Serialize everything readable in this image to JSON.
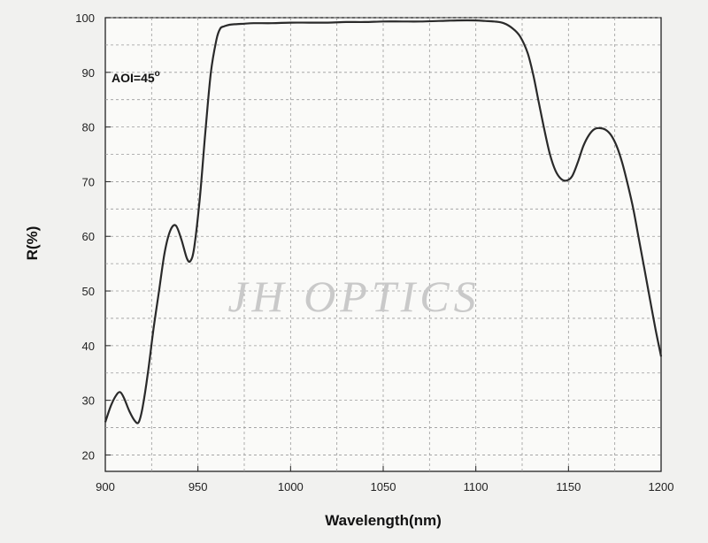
{
  "chart_data": {
    "type": "line",
    "title": "",
    "xlabel": "Wavelength(nm)",
    "ylabel": "R(%)",
    "xlim": [
      900,
      1200
    ],
    "ylim": [
      17,
      100
    ],
    "x_ticks": [
      900,
      950,
      1000,
      1050,
      1100,
      1150,
      1200
    ],
    "y_ticks": [
      20,
      30,
      40,
      50,
      60,
      70,
      80,
      90,
      100
    ],
    "grid": true,
    "annotation": {
      "text": "AOI=45",
      "superscript": "o"
    },
    "watermark": "JH OPTICS",
    "line_color": "#2a2a2a",
    "series": [
      {
        "x": [
          900,
          903,
          906,
          908,
          910,
          913,
          916,
          918,
          920,
          923,
          926,
          929,
          932,
          935,
          938,
          941,
          944,
          946,
          948,
          951,
          954,
          957,
          960,
          962,
          964,
          967,
          970,
          975,
          980,
          990,
          1000,
          1010,
          1020,
          1030,
          1040,
          1050,
          1060,
          1070,
          1080,
          1090,
          1100,
          1105,
          1110,
          1115,
          1120,
          1124,
          1128,
          1131,
          1134,
          1137,
          1140,
          1143,
          1146,
          1149,
          1152,
          1155,
          1158,
          1161,
          1164,
          1167,
          1170,
          1173,
          1176,
          1179,
          1182,
          1185,
          1188,
          1191,
          1194,
          1197,
          1200
        ],
        "y": [
          26,
          29,
          31,
          31.5,
          30.5,
          28,
          26.2,
          26,
          28.5,
          35,
          43,
          50,
          57,
          61,
          62,
          59.5,
          56,
          55.5,
          58,
          67,
          79,
          90,
          96,
          98,
          98.4,
          98.7,
          98.8,
          98.9,
          99,
          99,
          99.1,
          99.1,
          99.1,
          99.2,
          99.2,
          99.3,
          99.3,
          99.3,
          99.4,
          99.5,
          99.5,
          99.4,
          99.3,
          99,
          98,
          96.5,
          93.5,
          89.5,
          84.5,
          79.5,
          75,
          72,
          70.5,
          70.2,
          71,
          73.5,
          76.5,
          78.5,
          79.6,
          79.8,
          79.5,
          78.5,
          76.5,
          73.5,
          69.5,
          65,
          59.5,
          54,
          48.5,
          43,
          38
        ]
      }
    ]
  }
}
